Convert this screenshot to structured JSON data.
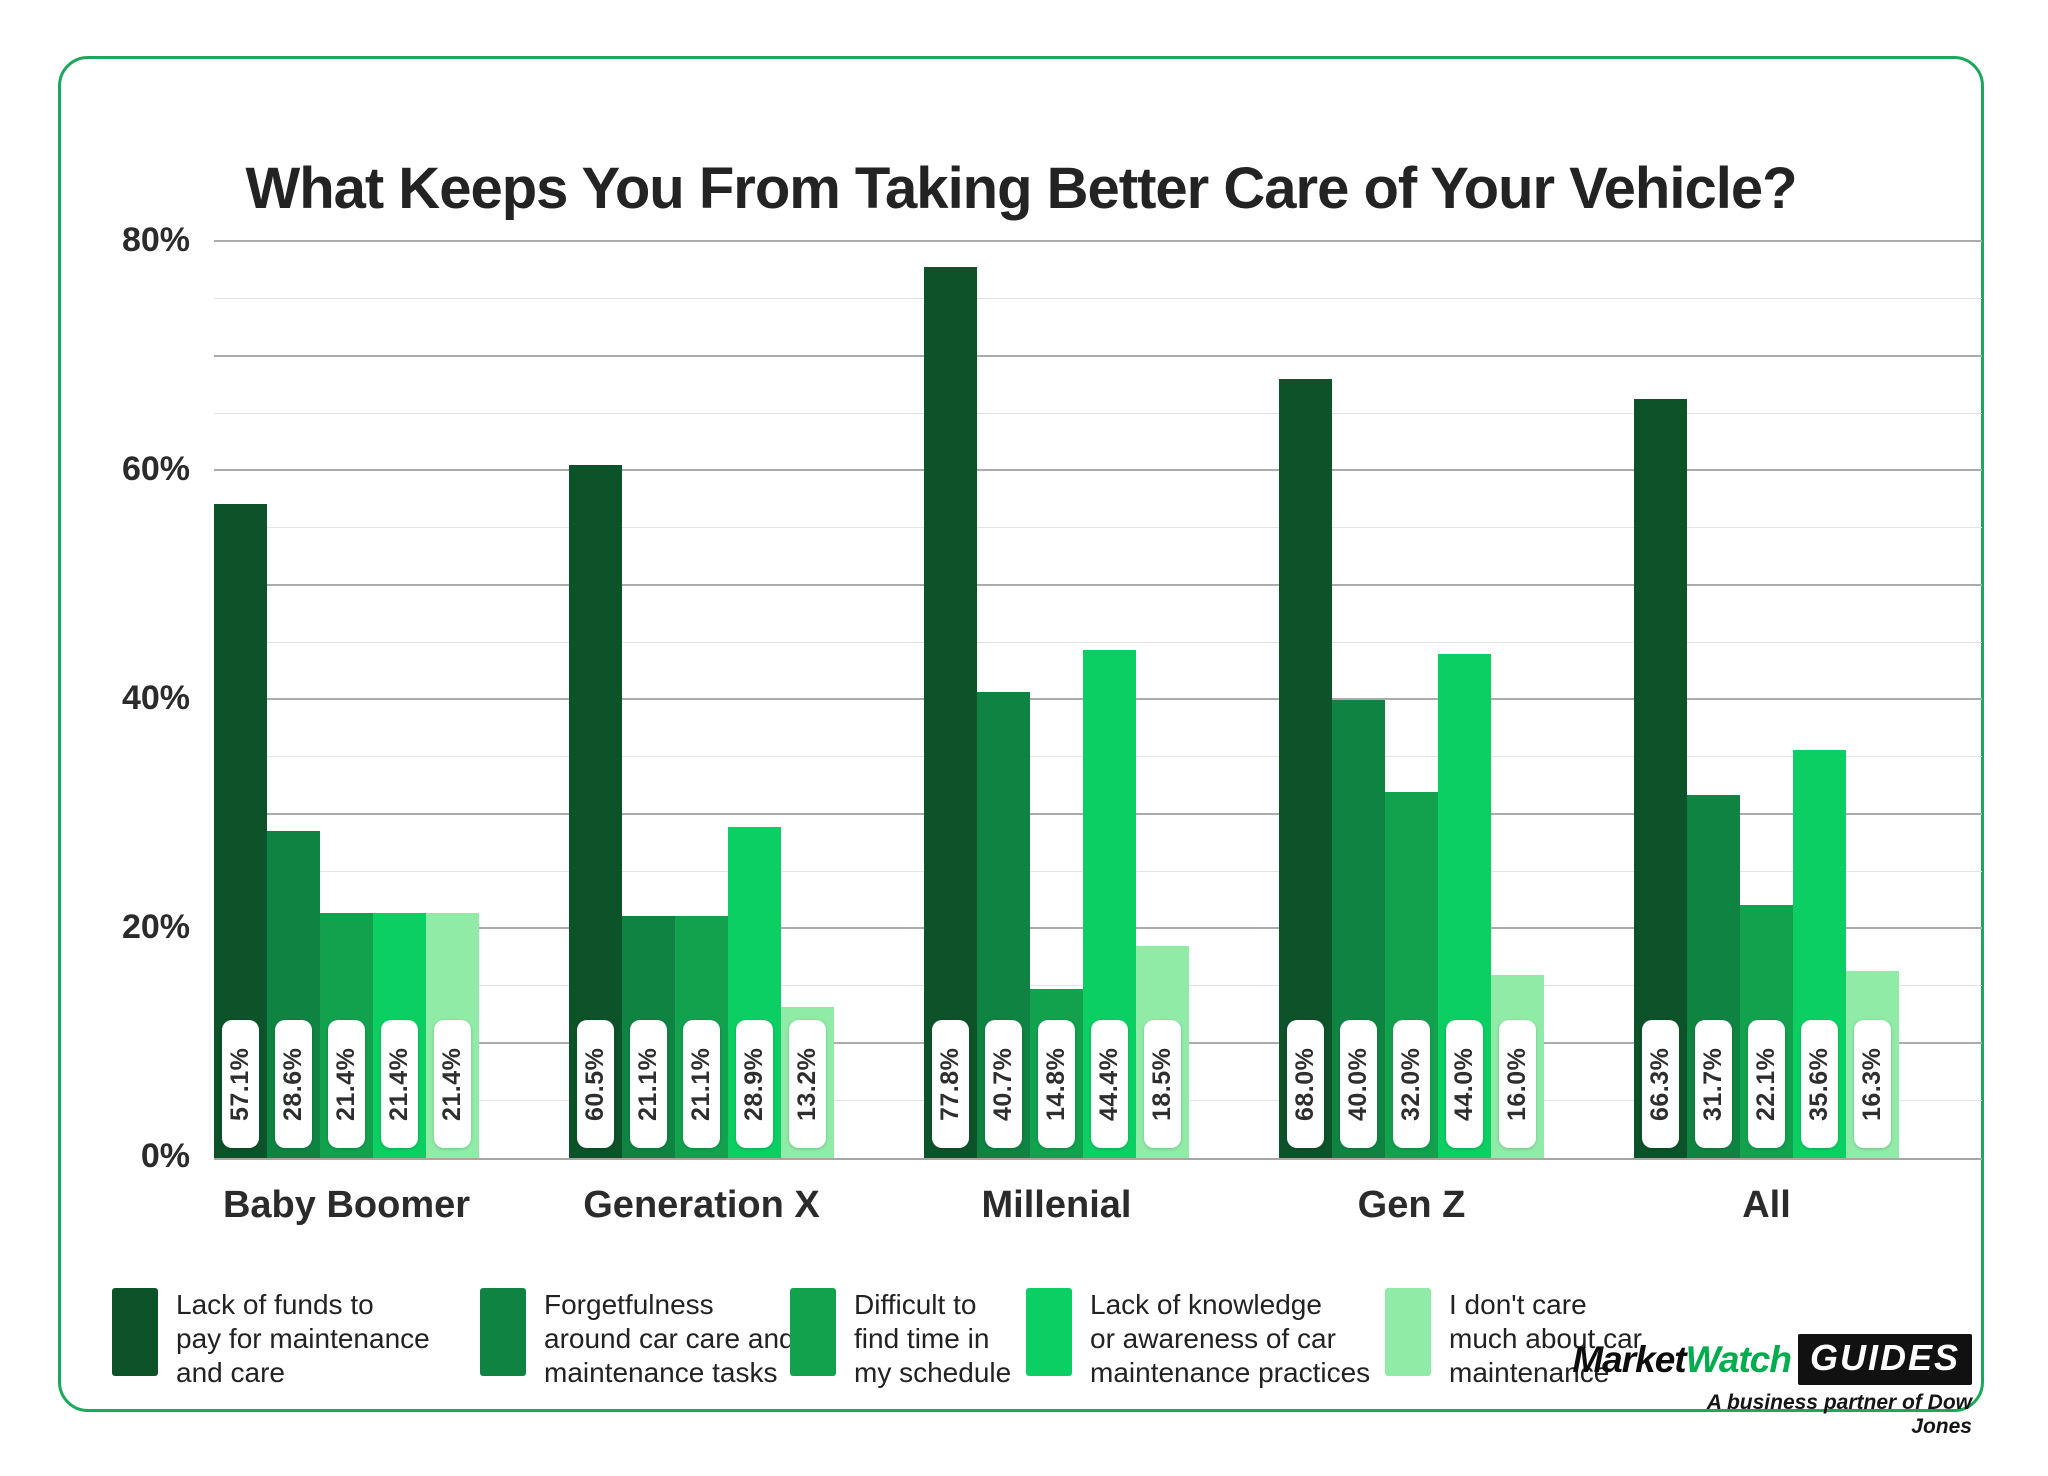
{
  "title": "What Keeps You From Taking Better Care of Your Vehicle?",
  "chart_data": {
    "type": "bar",
    "title": "What Keeps You From Taking Better Care of Your Vehicle?",
    "categories": [
      "Baby Boomer",
      "Generation X",
      "Millenial",
      "Gen Z",
      "All"
    ],
    "series": [
      {
        "name": "Lack of funds to pay for maintenance and care",
        "color": "#0D5329",
        "values": [
          57.1,
          60.5,
          77.8,
          68.0,
          66.3
        ]
      },
      {
        "name": "Forgetfulness around car care and maintenance tasks",
        "color": "#0F8442",
        "values": [
          28.6,
          21.1,
          40.7,
          40.0,
          31.7
        ]
      },
      {
        "name": "Difficult to find time in my schedule",
        "color": "#12A24E",
        "values": [
          21.4,
          21.1,
          14.8,
          32.0,
          22.1
        ]
      },
      {
        "name": "Lack of knowledge or awareness of car maintenance practices",
        "color": "#0CCF63",
        "values": [
          21.4,
          28.9,
          44.4,
          44.0,
          35.6
        ]
      },
      {
        "name": "I don't care much about car maintenance",
        "color": "#8FEBA6",
        "values": [
          21.4,
          13.2,
          18.5,
          16.0,
          16.3
        ]
      }
    ],
    "value_label_format": "percent_one_decimal",
    "y_axis": {
      "ticks": [
        "0%",
        "20%",
        "40%",
        "60%",
        "80%"
      ],
      "tick_values": [
        0,
        20,
        40,
        60,
        80
      ],
      "max": 80,
      "grid_step": 5
    },
    "grid": "on",
    "legend_position": "bottom"
  },
  "legend": {
    "items": [
      {
        "lines": "Lack of funds to\npay for maintenance\nand care"
      },
      {
        "lines": "Forgetfulness\naround car care and\nmaintenance tasks"
      },
      {
        "lines": "Difficult to\nfind time in\nmy schedule"
      },
      {
        "lines": "Lack of knowledge\nor awareness of car\nmaintenance practices"
      },
      {
        "lines": "I don't care\nmuch about car\nmaintenance"
      }
    ]
  },
  "footer": {
    "logo": {
      "market": "Market",
      "watch": "Watch",
      "guides": "GUIDES",
      "tagline": "A business partner of Dow Jones"
    }
  }
}
